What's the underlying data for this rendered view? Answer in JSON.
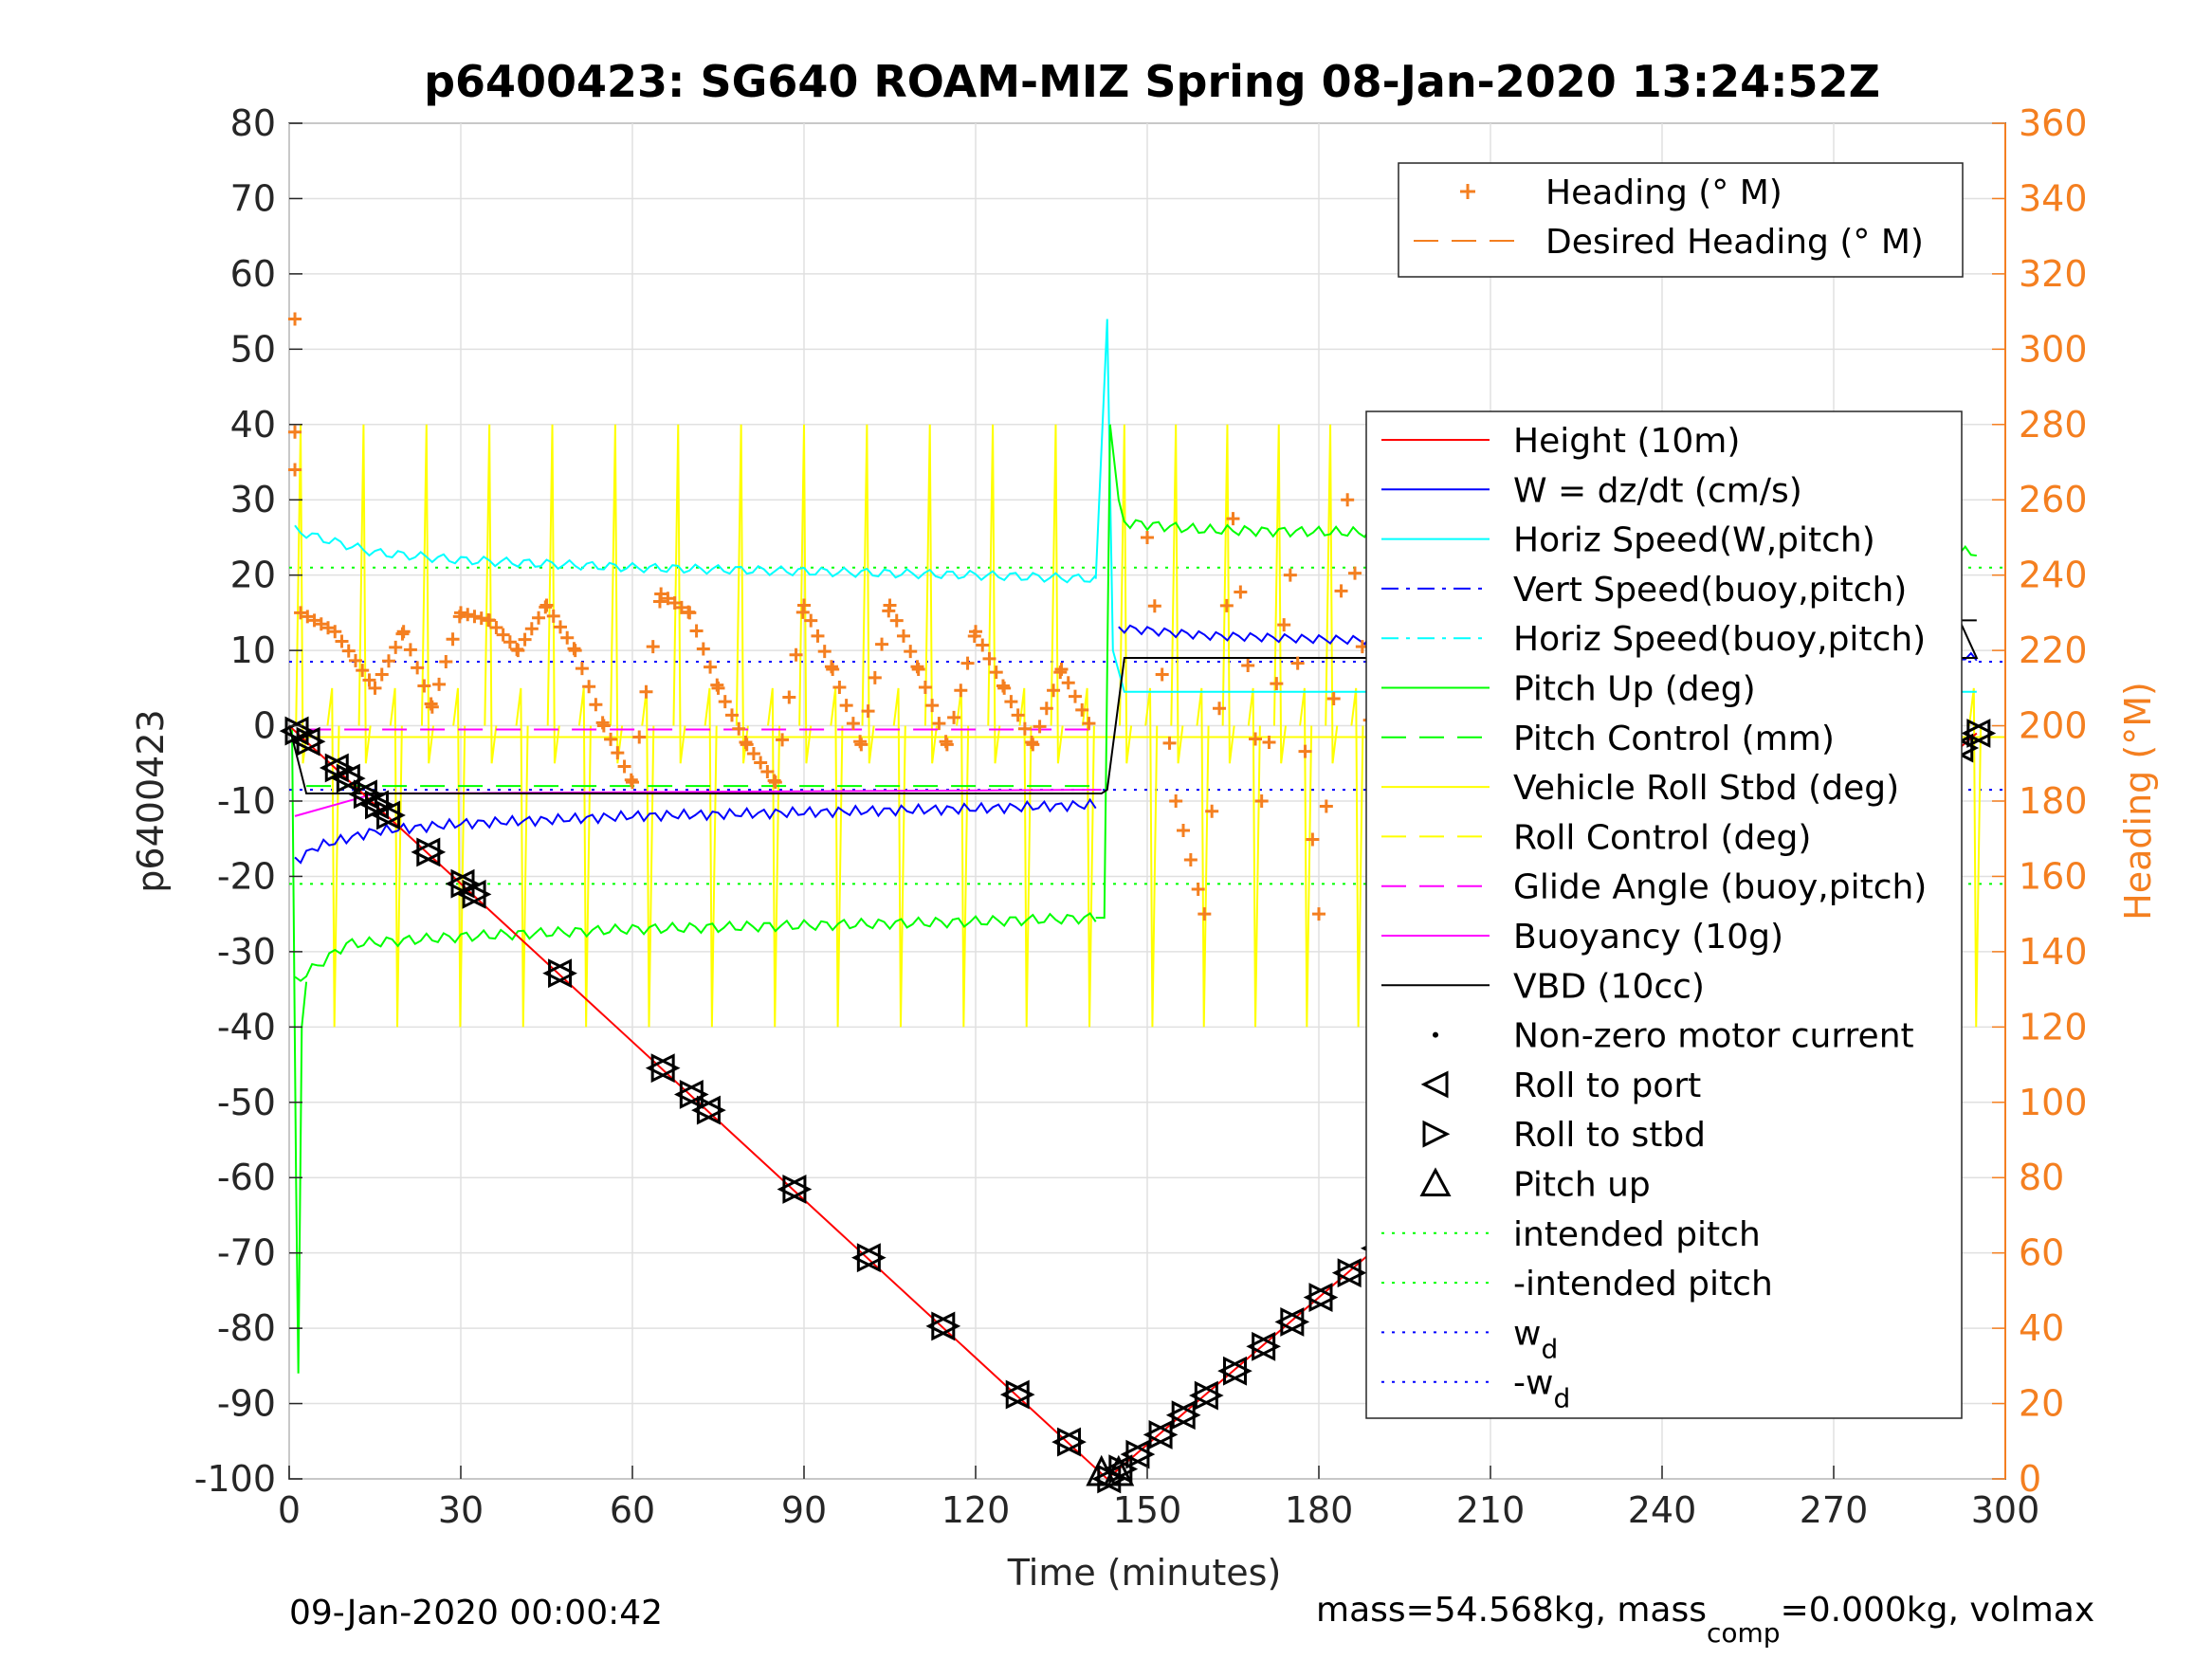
{
  "chart_data": {
    "type": "line",
    "title": "p6400423: SG640 ROAM-MIZ Spring 08-Jan-2020 13:24:52Z",
    "xlabel": "Time (minutes)",
    "ylabel": "p6400423",
    "y2label": "Heading (°M)",
    "xlim": [
      0,
      300
    ],
    "ylim": [
      -100,
      80
    ],
    "y2lim": [
      0,
      360
    ],
    "xticks": [
      "0",
      "30",
      "60",
      "90",
      "120",
      "150",
      "180",
      "210",
      "240",
      "270",
      "300"
    ],
    "yticks": [
      "80",
      "70",
      "60",
      "50",
      "40",
      "30",
      "20",
      "10",
      "0",
      "-10",
      "-20",
      "-30",
      "-40",
      "-50",
      "-60",
      "-70",
      "-80",
      "-90",
      "-100"
    ],
    "y2ticks": [
      "360",
      "340",
      "320",
      "300",
      "280",
      "260",
      "240",
      "220",
      "200",
      "180",
      "160",
      "140",
      "120",
      "100",
      "80",
      "60",
      "40",
      "20",
      "0"
    ],
    "grid": true,
    "footer_left": "09-Jan-2020 00:00:42",
    "footer_right": {
      "prefix": "mass=54.568kg, mass",
      "sub": "comp",
      "suffix": "=0.000kg, volmax"
    },
    "legend_heading": [
      {
        "label": "Heading (° M)",
        "color": "#f47f20",
        "style": "plus"
      },
      {
        "label": "Desired Heading (° M)",
        "color": "#f47f20",
        "style": "dash"
      }
    ],
    "legend_main": [
      {
        "label": "Height (10m)",
        "color": "#ff0000",
        "style": "solid"
      },
      {
        "label": "W = dz/dt (cm/s)",
        "color": "#0000ff",
        "style": "solid"
      },
      {
        "label": "Horiz Speed(W,pitch)",
        "color": "#00ffff",
        "style": "solid"
      },
      {
        "label": "Vert Speed(buoy,pitch)",
        "color": "#0000ff",
        "style": "dashdot"
      },
      {
        "label": "Horiz Speed(buoy,pitch)",
        "color": "#00ffff",
        "style": "dashdot"
      },
      {
        "label": "Pitch Up (deg)",
        "color": "#00ff00",
        "style": "solid"
      },
      {
        "label": "Pitch Control (mm)",
        "color": "#00ff00",
        "style": "dash"
      },
      {
        "label": "Vehicle Roll Stbd (deg)",
        "color": "#ffff00",
        "style": "solid"
      },
      {
        "label": "Roll Control (deg)",
        "color": "#ffff00",
        "style": "dash"
      },
      {
        "label": "Glide Angle (buoy,pitch)",
        "color": "#ff00ff",
        "style": "dash"
      },
      {
        "label": "Buoyancy (10g)",
        "color": "#ff00ff",
        "style": "solid"
      },
      {
        "label": "VBD (10cc)",
        "color": "#000000",
        "style": "solid"
      },
      {
        "label": "Non-zero motor current",
        "color": "#000000",
        "style": "dot"
      },
      {
        "label": "Roll to port",
        "color": "#000000",
        "style": "tri-left"
      },
      {
        "label": "Roll to stbd",
        "color": "#000000",
        "style": "tri-right"
      },
      {
        "label": "Pitch up",
        "color": "#000000",
        "style": "tri-up"
      },
      {
        "label": "intended pitch",
        "color": "#00ff00",
        "style": "dotted"
      },
      {
        "label": "-intended pitch",
        "color": "#00ff00",
        "style": "dotted"
      },
      {
        "label": "w",
        "sub": "d",
        "color": "#0000ff",
        "style": "dotted"
      },
      {
        "label": "-w",
        "sub": "d",
        "color": "#0000ff",
        "style": "dotted"
      }
    ],
    "colors": {
      "heading": "#f47f20",
      "height": "#ff0000",
      "w": "#0000ff",
      "horiz": "#00ffff",
      "pitch": "#00ff00",
      "roll": "#ffff00",
      "glide": "#ff00ff",
      "vbd": "#000000"
    },
    "series": {
      "height_descent": {
        "x": [
          0,
          143
        ],
        "y": [
          0,
          -100
        ]
      },
      "height_ascent": {
        "x": [
          143,
          295
        ],
        "y": [
          -100,
          -1
        ]
      },
      "markers_descent_t": [
        1,
        3,
        8,
        10,
        13,
        15,
        17,
        24,
        30,
        32,
        47,
        65,
        70,
        73,
        88,
        101,
        114,
        127,
        136,
        143
      ],
      "markers_ascent_t": [
        145,
        148,
        152,
        156,
        160,
        165,
        170,
        175,
        180,
        185,
        190,
        196,
        201,
        204,
        208,
        212,
        216,
        220,
        224,
        228,
        232,
        236,
        240,
        244,
        248,
        252,
        256,
        260,
        264,
        268,
        272,
        276,
        280,
        284,
        288,
        292,
        295
      ],
      "horiz_speed": {
        "x": [
          1,
          5,
          15,
          30,
          60,
          90,
          120,
          141
        ],
        "y": [
          26,
          25,
          23,
          22,
          21,
          20.5,
          20,
          19.5
        ]
      },
      "w_descent": {
        "x": [
          1,
          5,
          15,
          30,
          60,
          90,
          120,
          141
        ],
        "y": [
          -18,
          -16,
          -14,
          -13,
          -12,
          -11.5,
          -11,
          -10.5
        ]
      },
      "w_ascent": {
        "x": [
          145,
          160,
          180,
          210,
          240,
          270,
          295
        ],
        "y": [
          13,
          12,
          11.5,
          11,
          10.5,
          10,
          9
        ]
      },
      "pitch_descent": {
        "x": [
          1,
          10,
          30,
          60,
          90,
          120,
          141
        ],
        "y": [
          -34,
          -29,
          -28,
          -27,
          -26.5,
          -26,
          -25.5
        ]
      },
      "pitch_ascent": {
        "x": [
          146,
          160,
          200,
          240,
          270,
          295
        ],
        "y": [
          27,
          26,
          25.5,
          25,
          24,
          23
        ]
      },
      "vbd": {
        "x": [
          0,
          3,
          142,
          143,
          146,
          295
        ],
        "y": [
          0,
          -9,
          -9,
          -8.5,
          9,
          9
        ]
      },
      "intended_pitch": 21,
      "wd": 8.5,
      "heading_descent": {
        "x": [
          2,
          8,
          15,
          20,
          25,
          30,
          35,
          40,
          45,
          50,
          55,
          60,
          65,
          70,
          75,
          80,
          85,
          90,
          95,
          100,
          105,
          110,
          115,
          120,
          125,
          130,
          135,
          140
        ],
        "y": [
          230,
          225,
          210,
          225,
          205,
          230,
          228,
          220,
          232,
          220,
          200,
          185,
          235,
          230,
          210,
          195,
          185,
          232,
          215,
          195,
          232,
          215,
          195,
          225,
          210,
          195,
          215,
          200
        ]
      },
      "heading_ascent": {
        "x": [
          150,
          155,
          160,
          165,
          170,
          175,
          180,
          185,
          190,
          195,
          200,
          205,
          210,
          215,
          220,
          225,
          230,
          235,
          240,
          245,
          250,
          255,
          260,
          265,
          270,
          275,
          280,
          285,
          290
        ],
        "y": [
          250,
          180,
          150,
          255,
          180,
          240,
          150,
          260,
          185,
          255,
          175,
          265,
          195,
          225,
          200,
          250,
          215,
          245,
          205,
          250,
          210,
          245,
          220,
          240,
          215,
          255,
          210,
          260,
          220
        ]
      }
    }
  }
}
